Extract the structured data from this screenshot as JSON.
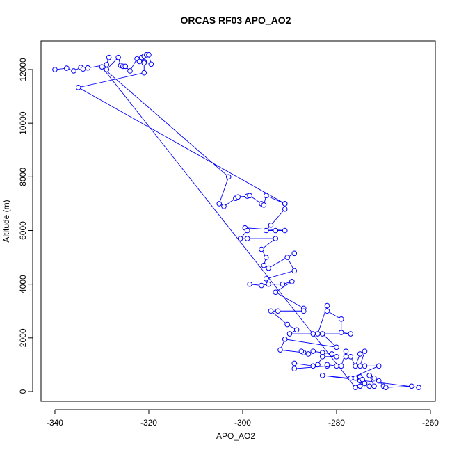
{
  "chart_data": {
    "type": "line",
    "title": "ORCAS RF03 APO_AO2",
    "x_label": "APO_AO2",
    "y_label": "Altitude (m)",
    "color": "#0000ff",
    "markers": "open-circle",
    "x": [
      -340,
      -337.5,
      -336,
      -334.5,
      -334,
      -333,
      -329,
      -328.5,
      -329,
      -326.5,
      -326,
      -325.5,
      -325,
      -324,
      -322.5,
      -322,
      -321.5,
      -321,
      -320.5,
      -320,
      -319.5,
      -321,
      -321,
      -321,
      -335,
      -291,
      -291,
      -294,
      -295,
      -293,
      -291,
      -299.5,
      -299,
      -300.5,
      -299,
      -293,
      -296,
      -295,
      -295.5,
      -294.5,
      -289,
      -290.5,
      -289,
      -295,
      -294.5,
      -296,
      -298.5,
      -291.5,
      -289.5,
      -293,
      -287,
      -287,
      -292.5,
      -294,
      -290.5,
      -288.5,
      -290,
      -285,
      -284,
      -282,
      -282,
      -279,
      -279,
      -277,
      -283,
      -280,
      -291,
      -292,
      -287,
      -287.5,
      -286,
      -285,
      -283,
      -281,
      -280,
      -283,
      -284,
      -285,
      -289,
      -289,
      -282,
      -282,
      -280,
      -279,
      -278,
      -278,
      -277,
      -276,
      -275,
      -274,
      -275,
      -274,
      -271,
      -277,
      -276,
      -275,
      -275,
      -274,
      -273,
      -272,
      -273,
      -272,
      -271,
      -270,
      -269.5,
      -264,
      -262.5,
      -283,
      -274.5,
      -275,
      -276,
      -330,
      -303,
      -305,
      -304,
      -301.5,
      -301,
      -299,
      -298.5,
      -296,
      -295.5,
      -295,
      -291
    ],
    "values": [
      12000,
      12050,
      11950,
      12080,
      12020,
      12060,
      12180,
      12450,
      12000,
      12450,
      12150,
      12120,
      12120,
      11950,
      12400,
      12300,
      12450,
      12500,
      12550,
      12550,
      12200,
      12300,
      12250,
      11880,
      11330,
      7000,
      6800,
      6200,
      6000,
      6000,
      6000,
      6100,
      6000,
      5700,
      5700,
      5700,
      5300,
      5000,
      4700,
      4600,
      5150,
      5000,
      4500,
      4200,
      4000,
      3950,
      4000,
      4000,
      4100,
      3700,
      3100,
      3000,
      3000,
      3000,
      2500,
      2300,
      2150,
      2150,
      2150,
      3200,
      3000,
      2700,
      2200,
      2150,
      2150,
      1650,
      1950,
      1550,
      1450,
      1500,
      1400,
      1500,
      1450,
      1400,
      1300,
      1300,
      1000,
      950,
      1050,
      850,
      950,
      1000,
      950,
      950,
      1500,
      1300,
      1300,
      950,
      1400,
      1500,
      950,
      950,
      950,
      500,
      500,
      400,
      550,
      300,
      200,
      200,
      600,
      500,
      400,
      200,
      150,
      200,
      150,
      600,
      450,
      200,
      150,
      12100,
      8000,
      7000,
      6900,
      7200,
      7250,
      7280,
      7300,
      7000,
      6950,
      7300,
      7000
    ],
    "xlim": [
      -342.96,
      -258.96
    ],
    "ylim": [
      -363,
      13063
    ],
    "xticks": [
      -340,
      -320,
      -300,
      -280,
      -260
    ],
    "yticks": [
      0,
      2000,
      4000,
      6000,
      8000,
      10000,
      12000
    ]
  }
}
